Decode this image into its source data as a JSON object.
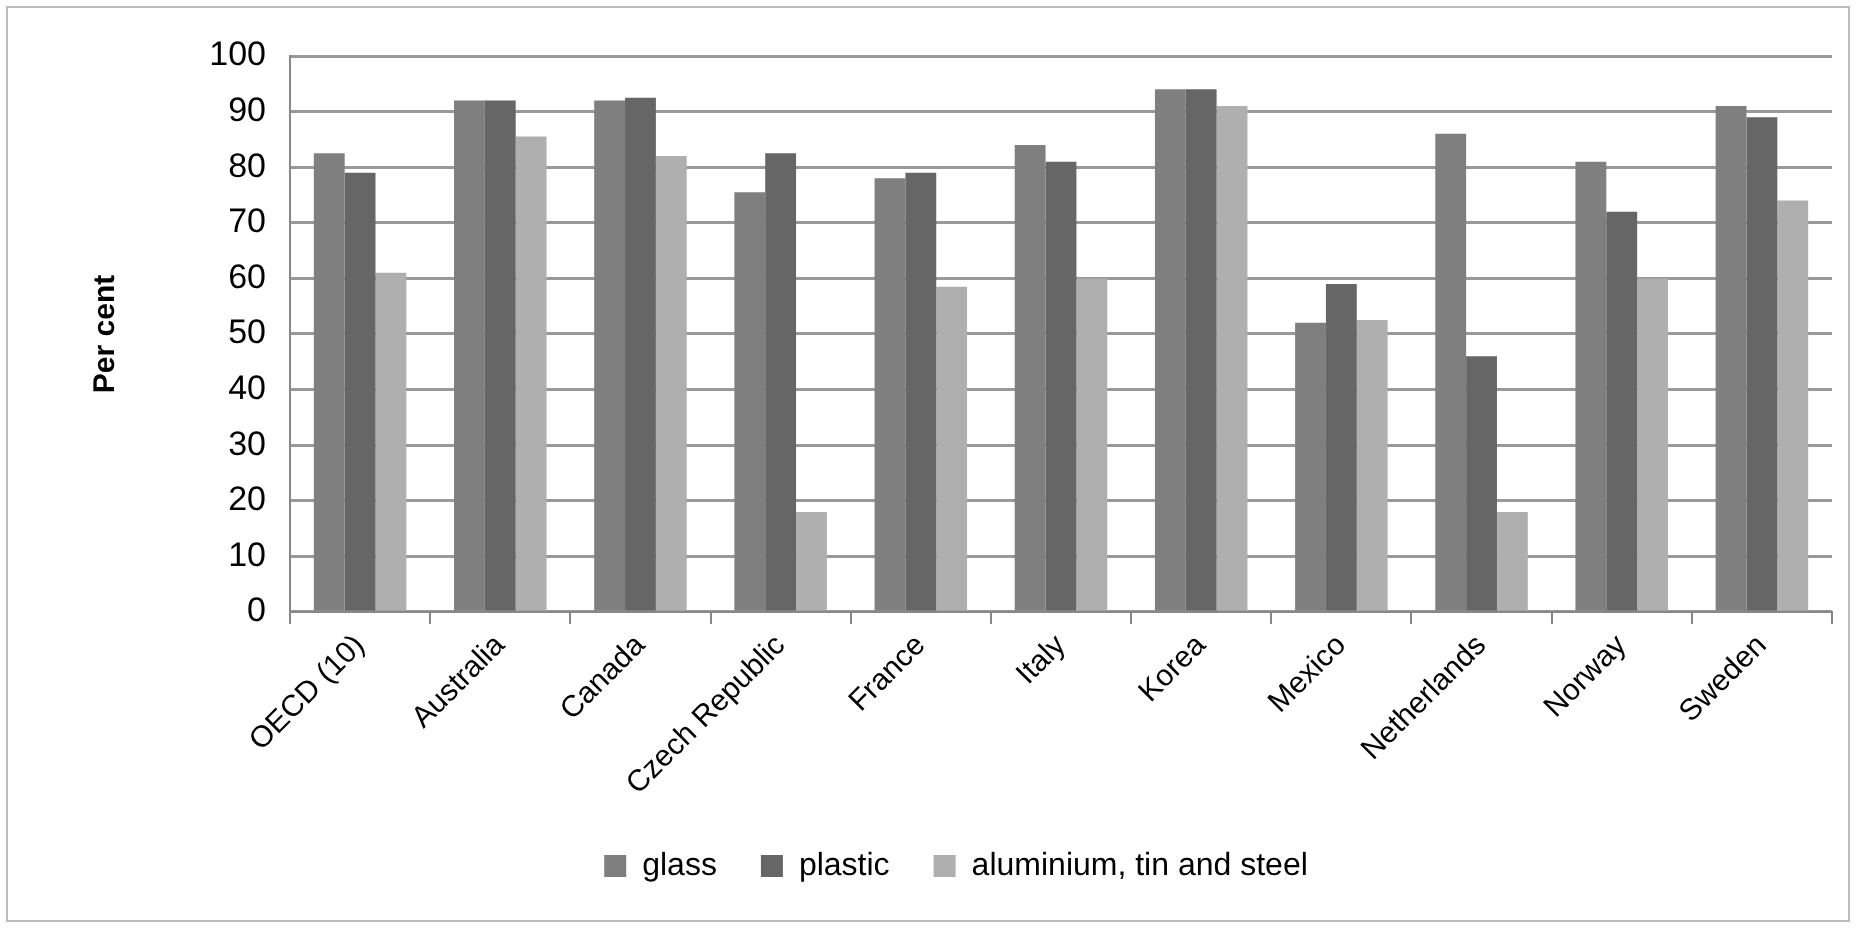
{
  "chart_data": {
    "type": "bar",
    "ylabel": "Per cent",
    "categories": [
      "OECD (10)",
      "Australia",
      "Canada",
      "Czech Republic",
      "France",
      "Italy",
      "Korea",
      "Mexico",
      "Netherlands",
      "Norway",
      "Sweden"
    ],
    "series": [
      {
        "name": "glass",
        "color": "#7f7f7f",
        "values": [
          82.5,
          92,
          92,
          75.5,
          78,
          84,
          94,
          52,
          86,
          81,
          91
        ]
      },
      {
        "name": "plastic",
        "color": "#666666",
        "values": [
          79,
          92,
          92.5,
          82.5,
          79,
          81,
          94,
          59,
          46,
          72,
          89
        ]
      },
      {
        "name": "aluminium, tin and steel",
        "color": "#afafaf",
        "values": [
          61,
          85.5,
          82,
          18,
          58.5,
          60,
          91,
          52.5,
          18,
          60,
          74
        ]
      }
    ],
    "ylim": [
      0,
      100
    ],
    "yticks": [
      0,
      10,
      20,
      30,
      40,
      50,
      60,
      70,
      80,
      90,
      100
    ],
    "grid": "y",
    "legend": "bottom"
  }
}
